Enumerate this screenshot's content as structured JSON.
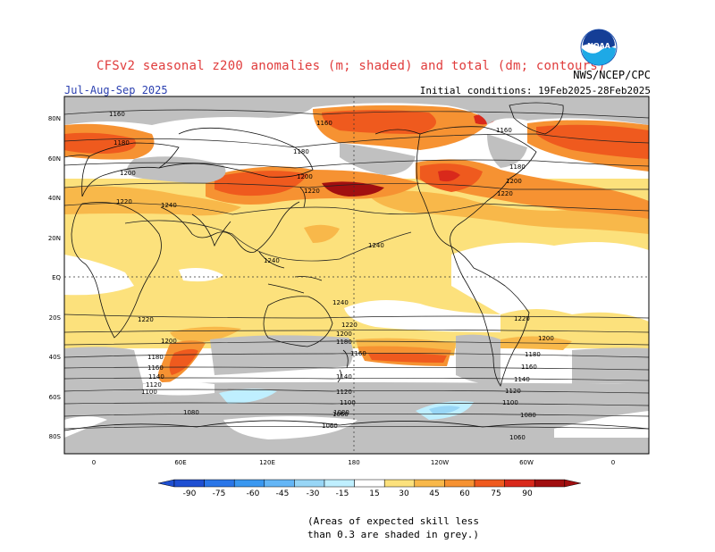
{
  "header": {
    "title": "CFSv2 seasonal z200 anomalies (m; shaded) and total (dm; contours)",
    "season": "Jul-Aug-Sep 2025",
    "initial_conditions": "Initial conditions: 19Feb2025-28Feb2025",
    "agency": "NWS/NCEP/CPC",
    "logo_text": "NOAA"
  },
  "map": {
    "lat_labels": [
      "80N",
      "60N",
      "40N",
      "20N",
      "EQ",
      "20S",
      "40S",
      "60S",
      "80S"
    ],
    "lon_labels": [
      "0",
      "60E",
      "120E",
      "180",
      "120W",
      "60W",
      "0"
    ],
    "contour_labels": [
      {
        "text": "1160"
      },
      {
        "text": "1180"
      },
      {
        "text": "1200"
      },
      {
        "text": "1220"
      },
      {
        "text": "1240"
      },
      {
        "text": "1160"
      },
      {
        "text": "1180"
      },
      {
        "text": "1200"
      },
      {
        "text": "1220"
      },
      {
        "text": "1240"
      },
      {
        "text": "1240"
      },
      {
        "text": "1160"
      },
      {
        "text": "1180"
      },
      {
        "text": "1200"
      },
      {
        "text": "1220"
      },
      {
        "text": "1240"
      },
      {
        "text": "1220"
      },
      {
        "text": "1200"
      },
      {
        "text": "1180"
      },
      {
        "text": "1160"
      },
      {
        "text": "1140"
      },
      {
        "text": "1120"
      },
      {
        "text": "1100"
      },
      {
        "text": "1080"
      },
      {
        "text": "1220"
      },
      {
        "text": "1200"
      },
      {
        "text": "1180"
      },
      {
        "text": "1160"
      },
      {
        "text": "1140"
      },
      {
        "text": "1120"
      },
      {
        "text": "1100"
      },
      {
        "text": "1080"
      },
      {
        "text": "1060"
      },
      {
        "text": "1220"
      },
      {
        "text": "1200"
      },
      {
        "text": "1180"
      },
      {
        "text": "1160"
      },
      {
        "text": "1140"
      },
      {
        "text": "1120"
      },
      {
        "text": "1100"
      },
      {
        "text": "1080"
      },
      {
        "text": "1060"
      },
      {
        "text": "1060"
      }
    ],
    "colors": {
      "low_skill": "#c0c0c0",
      "a15": "#fce17c",
      "a30": "#f8b84a",
      "a45": "#f69232",
      "a60": "#ef5a1e",
      "a75": "#d9291b",
      "a90": "#a10f10",
      "n15": "#bfefff",
      "n30": "#98d6f6"
    }
  },
  "colorbar": {
    "labels": [
      "-90",
      "-75",
      "-60",
      "-45",
      "-30",
      "-15",
      "15",
      "30",
      "45",
      "60",
      "75",
      "90"
    ],
    "colors": [
      "#1e4fd2",
      "#2a76e8",
      "#3a98f0",
      "#64b6f6",
      "#98d6f6",
      "#bfefff",
      "#ffffff",
      "#fce17c",
      "#f8b84a",
      "#f69232",
      "#ef5a1e",
      "#d9291b",
      "#a10f10"
    ]
  },
  "footnote": {
    "line1": "(Areas of expected skill less",
    "line2": "than 0.3 are shaded in grey.)"
  }
}
